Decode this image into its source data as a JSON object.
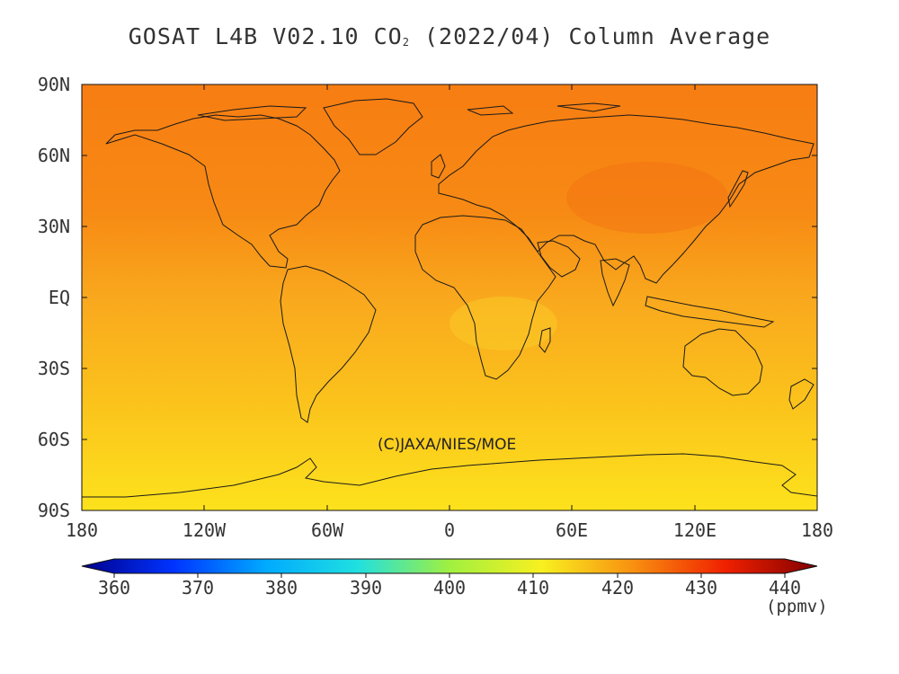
{
  "title": {
    "main": "GOSAT L4B V02.10 CO",
    "subscript": "2",
    "suffix": " (2022/04) Column Average"
  },
  "map": {
    "lat_labels": [
      "90N",
      "60N",
      "30N",
      "EQ",
      "30S",
      "60S",
      "90S"
    ],
    "lon_labels": [
      "180",
      "120W",
      "60W",
      "0",
      "60E",
      "120E",
      "180"
    ],
    "credit": "(C)JAXA/NIES/MOE",
    "field_colors": {
      "arctic": "#f77d12",
      "north_mid": "#f78a14",
      "tropics": "#f9a81d",
      "south_mid": "#fbc31c",
      "antarctic": "#fde21c"
    }
  },
  "colorbar": {
    "ticks": [
      "360",
      "370",
      "380",
      "390",
      "400",
      "410",
      "420",
      "430",
      "440"
    ],
    "units": "(ppmv)",
    "stops": [
      "#00008b",
      "#0033ff",
      "#00aaff",
      "#20e0e0",
      "#a0f040",
      "#f8f020",
      "#f89010",
      "#f02000",
      "#800000"
    ]
  }
}
